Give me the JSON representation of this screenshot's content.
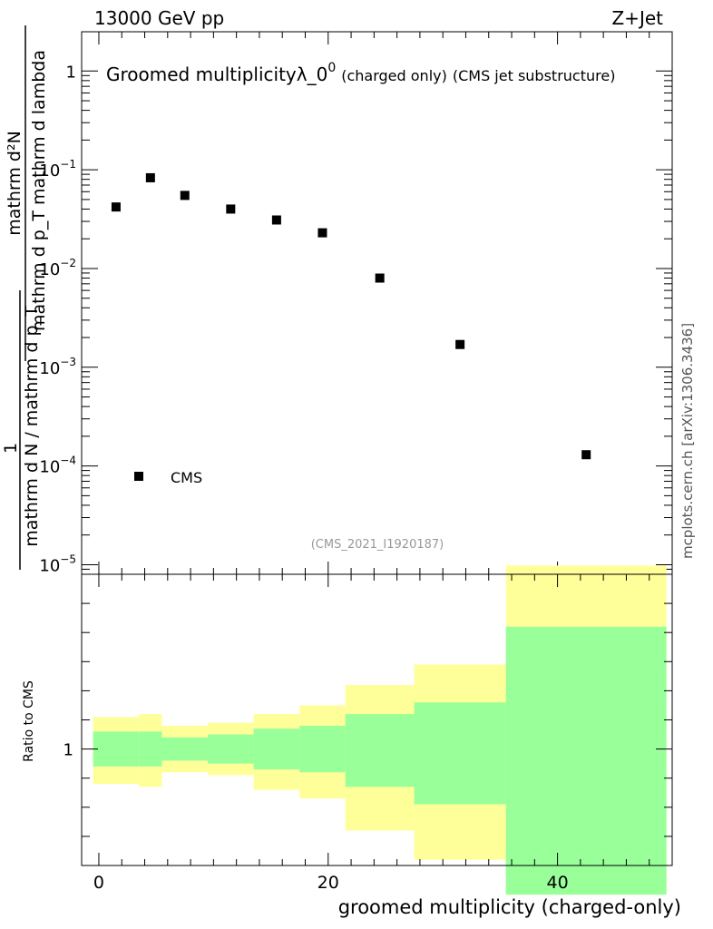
{
  "header": {
    "left": "13000 GeV pp",
    "right": "Z+Jet"
  },
  "plot_title": {
    "main": "Groomed multiplicityλ_0",
    "sup": "0",
    "charged": "(charged only)",
    "source": "(CMS jet substructure)"
  },
  "analysis_id": "(CMS_2021_I1920187)",
  "side_note": "mcplots.cern.ch [arXiv:1306.3436]",
  "ylabel": {
    "numerator": "mathrm d²N",
    "denominator": "mathrm d p_T mathrm d lambda",
    "one": "1",
    "lower_denominator": "mathrm d N / mathrm d p_T"
  },
  "ratio_ylabel": "Ratio to CMS",
  "xlabel": "groomed multiplicity (charged-only)",
  "legend": {
    "label": "CMS",
    "position": "bottom-left"
  },
  "colors": {
    "inner_band": "#99ff99",
    "outer_band": "#ffff99",
    "marker": "#000000",
    "grey_text": "#999999"
  },
  "chart_data": [
    {
      "type": "scatter",
      "yscale": "log",
      "ylim": [
        8e-06,
        2.5
      ],
      "xlim": [
        -1.5,
        50
      ],
      "yticks": [
        {
          "base": "1",
          "exp": ""
        },
        {
          "base": "10",
          "exp": "−1"
        },
        {
          "base": "10",
          "exp": "−2"
        },
        {
          "base": "10",
          "exp": "−3"
        },
        {
          "base": "10",
          "exp": "−4"
        },
        {
          "base": "10",
          "exp": "−5"
        }
      ],
      "series": [
        {
          "name": "CMS",
          "x": [
            1.5,
            4.5,
            7.5,
            11.5,
            15.5,
            19.5,
            24.5,
            31.5,
            42.5
          ],
          "y": [
            0.042,
            0.083,
            0.055,
            0.04,
            0.031,
            0.023,
            0.008,
            0.0017,
            0.00013
          ]
        }
      ]
    },
    {
      "type": "area",
      "ylabel": "Ratio to CMS",
      "xlim": [
        -1.5,
        50
      ],
      "ylim": [
        0.6,
        1.6
      ],
      "yticks": [
        "1"
      ],
      "xticks": [
        "0",
        "20",
        "40"
      ],
      "bins": [
        {
          "xlo": -0.5,
          "xhi": 3.5,
          "inner": [
            0.94,
            1.06
          ],
          "outer": [
            0.88,
            1.11
          ]
        },
        {
          "xlo": 3.5,
          "xhi": 5.5,
          "inner": [
            0.94,
            1.06
          ],
          "outer": [
            0.87,
            1.12
          ]
        },
        {
          "xlo": 5.5,
          "xhi": 9.5,
          "inner": [
            0.96,
            1.04
          ],
          "outer": [
            0.92,
            1.08
          ]
        },
        {
          "xlo": 9.5,
          "xhi": 13.5,
          "inner": [
            0.95,
            1.05
          ],
          "outer": [
            0.91,
            1.09
          ]
        },
        {
          "xlo": 13.5,
          "xhi": 17.5,
          "inner": [
            0.93,
            1.07
          ],
          "outer": [
            0.86,
            1.12
          ]
        },
        {
          "xlo": 17.5,
          "xhi": 21.5,
          "inner": [
            0.92,
            1.08
          ],
          "outer": [
            0.83,
            1.15
          ]
        },
        {
          "xlo": 21.5,
          "xhi": 27.5,
          "inner": [
            0.87,
            1.12
          ],
          "outer": [
            0.72,
            1.22
          ]
        },
        {
          "xlo": 27.5,
          "xhi": 35.5,
          "inner": [
            0.81,
            1.16
          ],
          "outer": [
            0.62,
            1.29
          ]
        },
        {
          "xlo": 35.5,
          "xhi": 49.5,
          "inner": [
            0.5,
            1.42
          ],
          "outer": [
            0.5,
            1.63
          ]
        }
      ]
    }
  ]
}
